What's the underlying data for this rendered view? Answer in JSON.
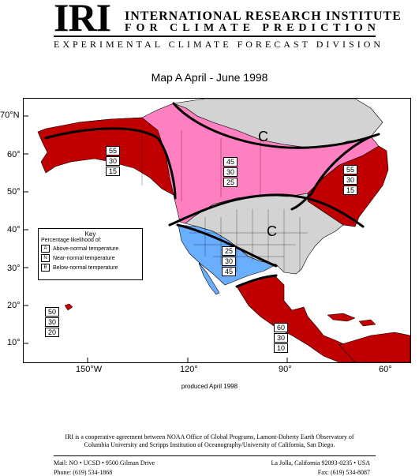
{
  "header": {
    "logo": "IRI",
    "institute_line1": "INTERNATIONAL RESEARCH INSTITUTE",
    "institute_line2": "FOR CLIMATE PREDICTION",
    "division": "EXPERIMENTAL CLIMATE FORECAST DIVISION"
  },
  "map": {
    "title": "Map A   April - June   1998",
    "lat_labels": [
      "70°N",
      "60°",
      "50°",
      "40°",
      "30°",
      "20°",
      "10°"
    ],
    "lon_labels": [
      "150°W",
      "120°",
      "90°",
      "60°"
    ],
    "colors": {
      "above": "#c00000",
      "near": "#d3d3d3",
      "below": "#6aaeff",
      "climatology": "#ff80c0",
      "ocean": "#ffffff"
    },
    "climatology_marks": [
      "C",
      "C"
    ],
    "regions": [
      {
        "name": "alaska",
        "values": [
          "55",
          "30",
          "15"
        ]
      },
      {
        "name": "canada-west",
        "values": [
          "45",
          "30",
          "25"
        ]
      },
      {
        "name": "canada-east",
        "values": [
          "55",
          "30",
          "15"
        ]
      },
      {
        "name": "southwest-us",
        "values": [
          "25",
          "30",
          "45"
        ]
      },
      {
        "name": "hawaii",
        "values": [
          "50",
          "30",
          "20"
        ]
      },
      {
        "name": "central-america",
        "values": [
          "60",
          "30",
          "10"
        ]
      }
    ],
    "key": {
      "title": "Key",
      "subtitle": "Percentage likelihood of:",
      "rows": [
        {
          "code": "A",
          "label": "Above-normal temperature"
        },
        {
          "code": "N",
          "label": "Near-normal temperature"
        },
        {
          "code": "B",
          "label": "Below-normal temperature"
        }
      ]
    },
    "produced": "produced April 1998"
  },
  "footer": {
    "coop_line1": "IRI is a cooperative agreement between NOAA Office of Global Programs, Lamont-Doherty Earth Observatory of",
    "coop_line2": "Columbia University and Scripps Institution of Oceanography/University of California, San Diego.",
    "mail": "Mail: NO • UCSD • 9500 Gilman Drive",
    "phone": "Phone: (619) 534-1868",
    "address": "La Jolla, California 92093-0235 • USA",
    "fax": "Fax: (619) 534-8087"
  }
}
